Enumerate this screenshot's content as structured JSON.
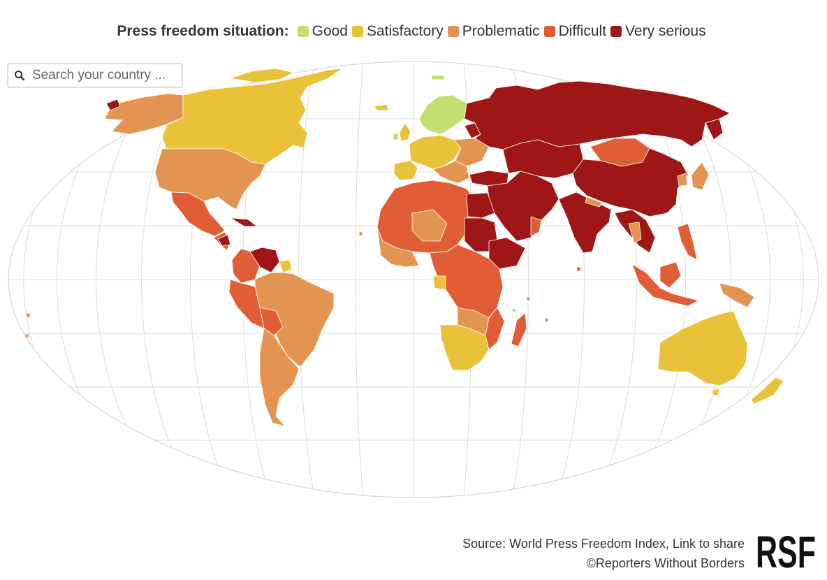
{
  "legend": {
    "title": "Press freedom situation:",
    "items": [
      {
        "label": "Good",
        "color": "#c2e06f"
      },
      {
        "label": "Satisfactory",
        "color": "#e9c23a"
      },
      {
        "label": "Problematic",
        "color": "#e39450"
      },
      {
        "label": "Difficult",
        "color": "#e05d35"
      },
      {
        "label": "Very serious",
        "color": "#9e1616"
      }
    ]
  },
  "search": {
    "placeholder": "Search your country ..."
  },
  "footer": {
    "source_line": "Source: World Press Freedom Index, Link to share",
    "copyright_line": "©Reporters Without Borders"
  },
  "logo_text": "RSF"
}
